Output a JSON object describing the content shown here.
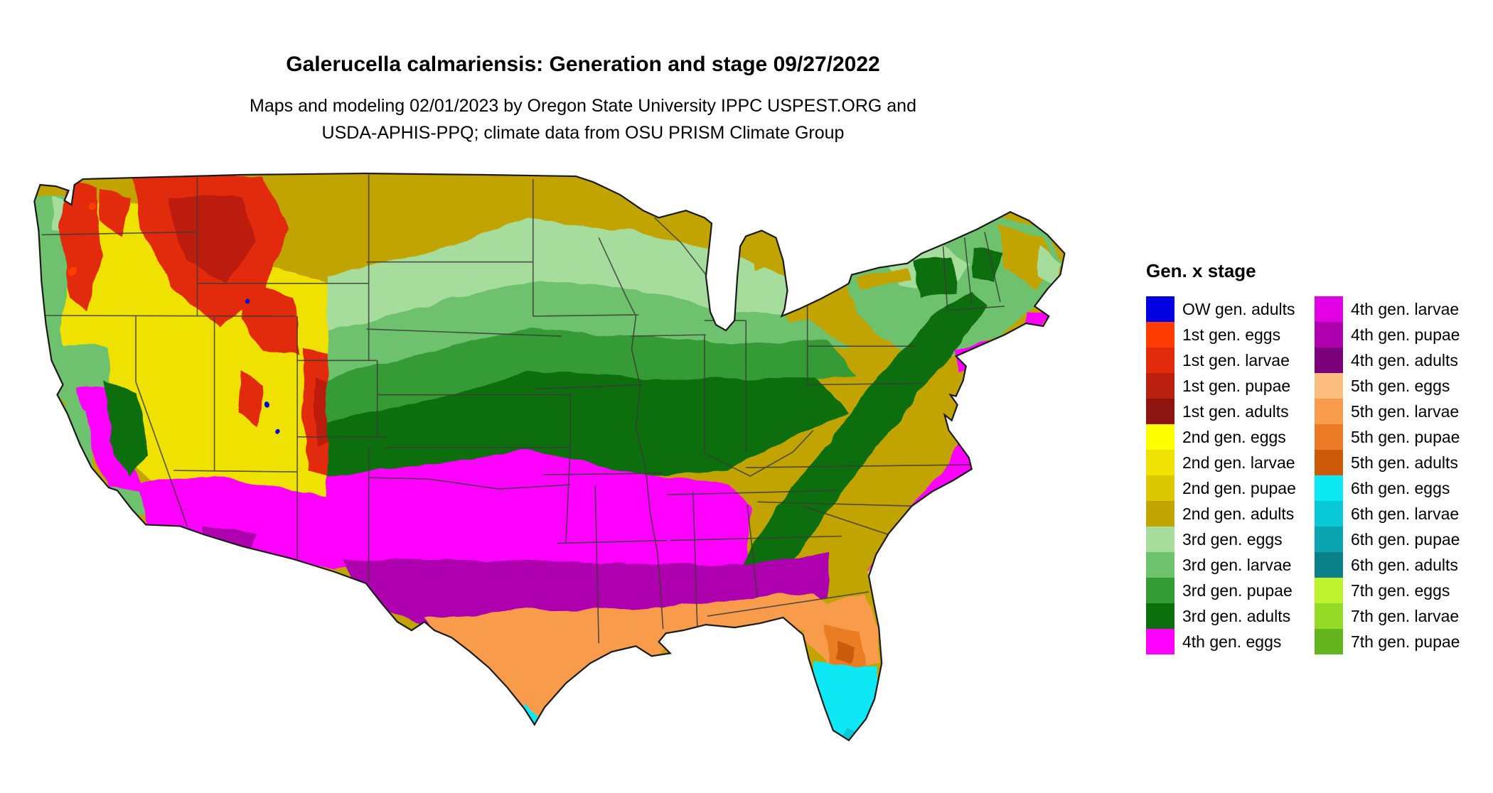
{
  "title": "Galerucella calmariensis: Generation and stage 09/27/2022",
  "subtitle": {
    "line1": "Maps and modeling 02/01/2023 by Oregon State University IPPC USPEST.ORG and",
    "line2": "USDA-APHIS-PPQ; climate data from OSU PRISM Climate Group"
  },
  "legend": {
    "title": "Gen. x stage",
    "column1": [
      {
        "label": "OW gen. adults",
        "color": "#0000E0"
      },
      {
        "label": "1st gen. eggs",
        "color": "#FF3D00"
      },
      {
        "label": "1st gen. larvae",
        "color": "#E22B0C"
      },
      {
        "label": "1st gen. pupae",
        "color": "#BB1F10"
      },
      {
        "label": "1st gen. adults",
        "color": "#8E1410"
      },
      {
        "label": "2nd gen. eggs",
        "color": "#FFFF00"
      },
      {
        "label": "2nd gen. larvae",
        "color": "#F0E202"
      },
      {
        "label": "2nd gen. pupae",
        "color": "#DCC802"
      },
      {
        "label": "2nd gen. adults",
        "color": "#C2A402"
      },
      {
        "label": "3rd gen. eggs",
        "color": "#A6DC9C"
      },
      {
        "label": "3rd gen. larvae",
        "color": "#6EC26E"
      },
      {
        "label": "3rd gen. pupae",
        "color": "#349C34"
      },
      {
        "label": "3rd gen. adults",
        "color": "#0A6E0A"
      },
      {
        "label": "4th gen. eggs",
        "color": "#FE00FE"
      }
    ],
    "column2": [
      {
        "label": "4th gen. larvae",
        "color": "#E400E4"
      },
      {
        "label": "4th gen. pupae",
        "color": "#AE00AE"
      },
      {
        "label": "4th gen. adults",
        "color": "#7C007C"
      },
      {
        "label": "5th gen. eggs",
        "color": "#FDBE80"
      },
      {
        "label": "5th gen. larvae",
        "color": "#F89B4B"
      },
      {
        "label": "5th gen. pupae",
        "color": "#EA7B24"
      },
      {
        "label": "5th gen. adults",
        "color": "#CC5A08"
      },
      {
        "label": "6th gen. eggs",
        "color": "#0CE8F4"
      },
      {
        "label": "6th gen. larvae",
        "color": "#08C8D8"
      },
      {
        "label": "6th gen. pupae",
        "color": "#0AA4B0"
      },
      {
        "label": "6th gen. adults",
        "color": "#0A8088"
      },
      {
        "label": "7th gen. eggs",
        "color": "#BEF22C"
      },
      {
        "label": "7th gen. larvae",
        "color": "#95DA24"
      },
      {
        "label": "7th gen. pupae",
        "color": "#63B61D"
      }
    ]
  },
  "map": {
    "region": "Continental United States",
    "date_shown": "09/27/2022"
  }
}
